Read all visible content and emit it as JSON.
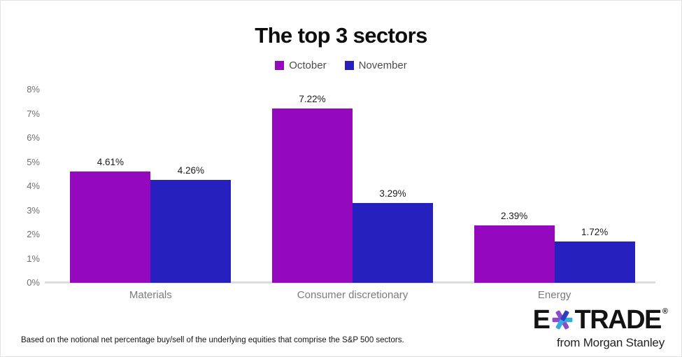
{
  "title": "The top 3 sectors",
  "chart_data": {
    "type": "bar",
    "categories": [
      "Materials",
      "Consumer discretionary",
      "Energy"
    ],
    "series": [
      {
        "name": "October",
        "color": "#9408BE",
        "values": [
          4.61,
          7.22,
          2.39
        ],
        "data_labels": [
          "4.61%",
          "7.22%",
          "2.39%"
        ]
      },
      {
        "name": "November",
        "color": "#2620BE",
        "values": [
          4.26,
          3.29,
          1.72
        ],
        "data_labels": [
          "4.26%",
          "3.29%",
          "1.72%"
        ]
      }
    ],
    "xlabel": "",
    "ylabel": "",
    "ylim": [
      0,
      8
    ],
    "yticks": [
      "8%",
      "7%",
      "6%",
      "5%",
      "4%",
      "3%",
      "2%",
      "1%",
      "0%"
    ],
    "grid": false,
    "legend_position": "top"
  },
  "footnote": "Based on the notional net percentage buy/sell of the underlying equities that comprise the S&P 500 sectors.",
  "logo": {
    "brand_prefix": "E",
    "brand_suffix": "TRADE",
    "registered_mark": "®",
    "tagline": "from Morgan Stanley",
    "star_colors": {
      "purple": "#8C4BC9",
      "cyan": "#35ACE0",
      "dark_blue": "#2F3EC0"
    }
  },
  "colors": {
    "october": "#9408BE",
    "november": "#2620BE",
    "axis_line": "#dcdcdc"
  }
}
